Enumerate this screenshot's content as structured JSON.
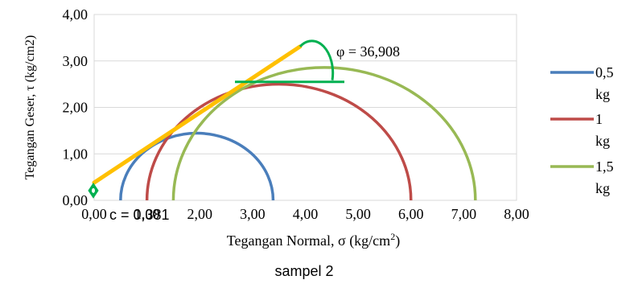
{
  "chart_data": {
    "type": "line",
    "title": "",
    "caption": "sampel 2",
    "xlabel": "Tegangan Normal, σ (kg/cm",
    "xlabel_sup": "2",
    "xlabel_close": ")",
    "ylabel": "Tegangan Geser, τ (kg/cm2)",
    "xlim": [
      0,
      8
    ],
    "ylim": [
      0,
      4
    ],
    "x_ticks": [
      "0,00",
      "1,00",
      "2,00",
      "3,00",
      "4,00",
      "5,00",
      "6,00",
      "7,00",
      "8,00"
    ],
    "y_ticks": [
      "0,00",
      "1,00",
      "2,00",
      "3,00",
      "4,00"
    ],
    "grid": "horizontal",
    "legend_position": "right",
    "series": [
      {
        "name": "0,5 kg",
        "label_line1": "0,5",
        "label_line2": "kg",
        "color": "#4a7ebb",
        "sigma3": 0.5,
        "sigma1": 3.39
      },
      {
        "name": "1 kg",
        "label_line1": "1",
        "label_line2": "kg",
        "color": "#be4b48",
        "sigma3": 1.0,
        "sigma1": 6.0
      },
      {
        "name": "1,5 kg",
        "label_line1": "1,5",
        "label_line2": "kg",
        "color": "#98b954",
        "sigma3": 1.5,
        "sigma1": 7.22
      }
    ],
    "envelope": {
      "c": 0.381,
      "phi_deg": 36.908,
      "x_start": 0.0,
      "x_end": 3.9,
      "color": "#ffc000"
    },
    "annotations": {
      "phi_text": "φ = 36,908",
      "c_text": "c = 0,381",
      "marker_color": "#00b050"
    }
  }
}
